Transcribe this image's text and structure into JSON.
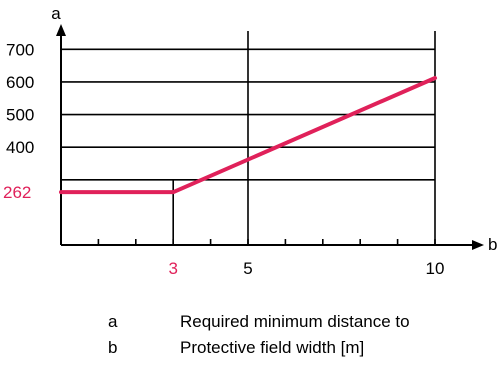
{
  "chart_data": {
    "type": "line",
    "x_axis_label": "b",
    "y_axis_label": "a",
    "x_ticks": [
      3,
      5,
      10
    ],
    "x_tick_labels": [
      "3",
      "5",
      "10"
    ],
    "y_ticks": [
      400,
      500,
      600,
      700
    ],
    "y_tick_labels": [
      "400",
      "500",
      "600",
      "700"
    ],
    "highlight_x_label": "3",
    "highlight_y_label": "262",
    "xlim": [
      0,
      10
    ],
    "ylim": [
      100,
      750
    ],
    "x_minor_tick_step": 1,
    "grid": true,
    "series": [
      {
        "x": [
          0,
          3,
          10
        ],
        "y": [
          262,
          262,
          612
        ]
      }
    ],
    "line_color": "#e0215a",
    "highlight_color": "#e0215a"
  },
  "legend": [
    {
      "key": "a",
      "text": "Required minimum distance to"
    },
    {
      "key": "b",
      "text": "Protective field width [m]"
    }
  ]
}
